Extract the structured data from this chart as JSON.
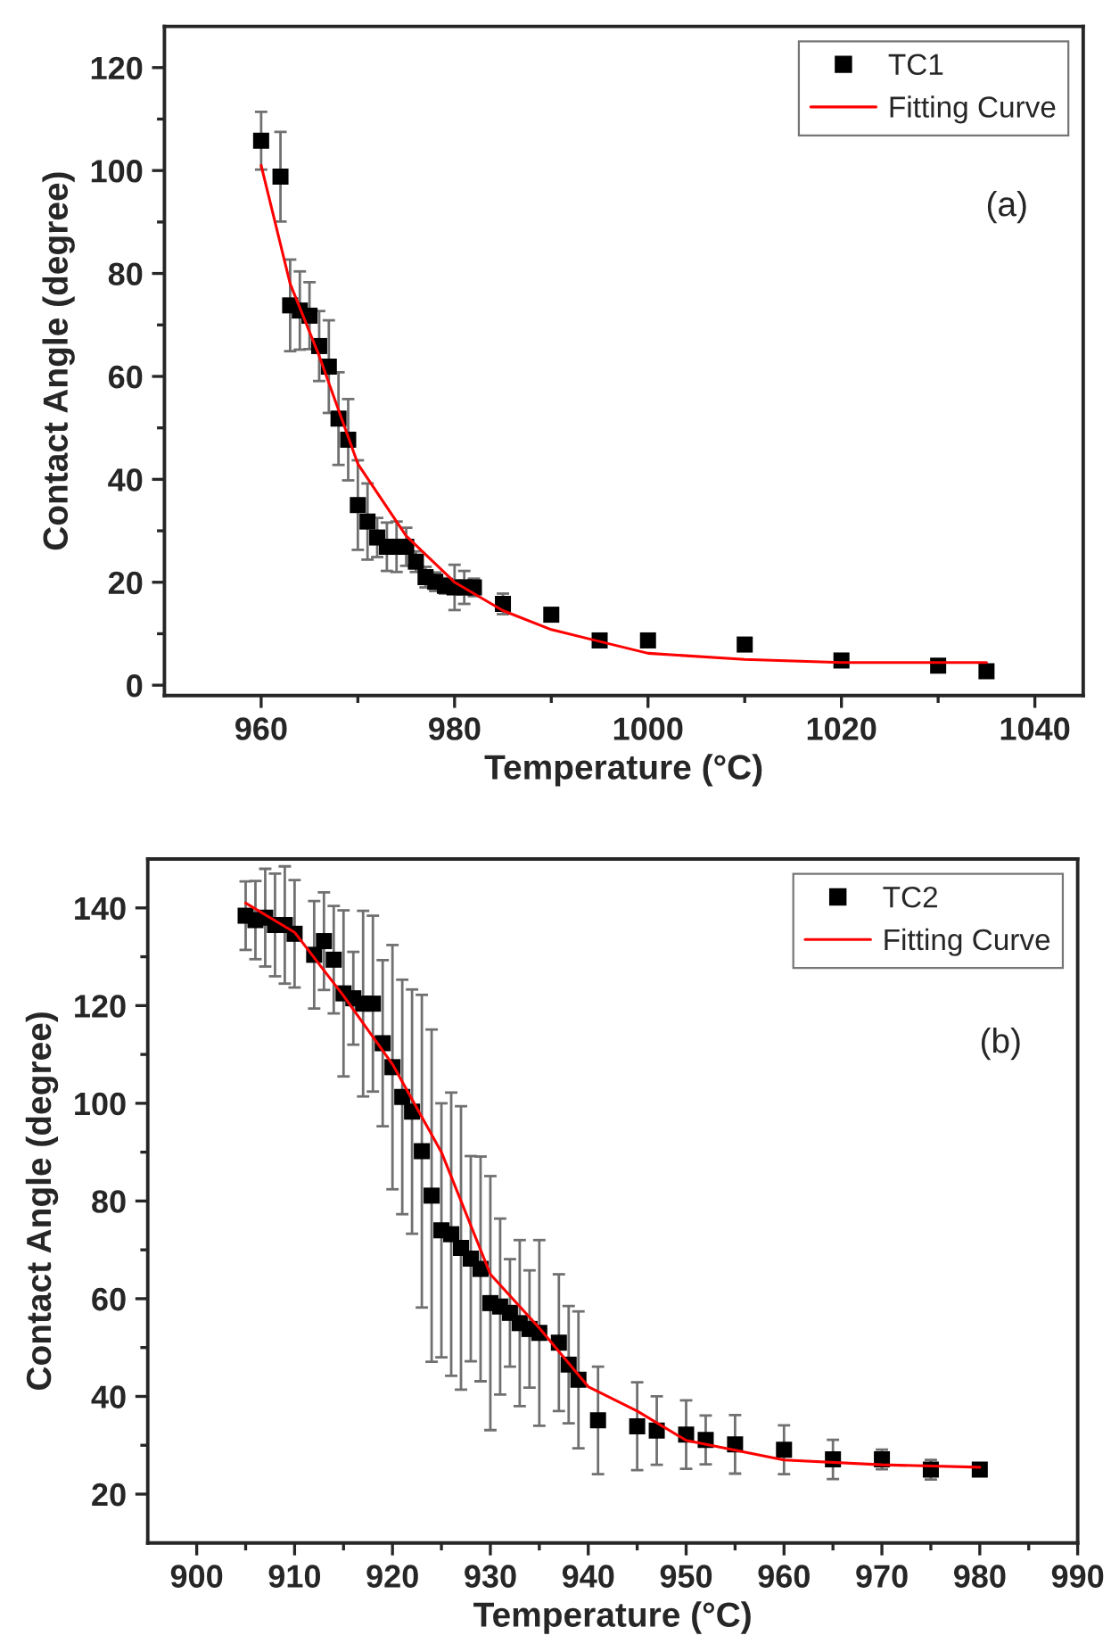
{
  "chart_data": [
    {
      "type": "scatter",
      "xlabel": "Temperature (°C)",
      "ylabel": "Contact Angle (degree)",
      "annotations": [
        "(a)"
      ],
      "xlim": [
        950,
        1045
      ],
      "xticks": [
        960,
        980,
        1000,
        1020,
        1040
      ],
      "ylim": [
        -2,
        128
      ],
      "yticks": [
        0,
        20,
        40,
        60,
        80,
        100,
        120
      ],
      "grid": false,
      "legend": "top right",
      "marker": "square",
      "series": [
        {
          "name": "TC1",
          "color": "#000000",
          "x": [
            960,
            962,
            963,
            964,
            965,
            966,
            967,
            968,
            969,
            970,
            971,
            972,
            973,
            974,
            975,
            976,
            977,
            978,
            979,
            980,
            981,
            982,
            985,
            990,
            995,
            1000,
            1010,
            1020,
            1030,
            1035
          ],
          "values": [
            105.8,
            98.8,
            73.8,
            72.8,
            71.8,
            65.9,
            61.9,
            51.8,
            47.7,
            35,
            31.8,
            28.7,
            26.9,
            26.9,
            26.9,
            24,
            21,
            20.1,
            19.3,
            19,
            19,
            19,
            15.8,
            13.7,
            8.7,
            8.7,
            7.9,
            4.8,
            3.8,
            2.7
          ],
          "errors": [
            5.6,
            8.7,
            8.9,
            7.6,
            6.5,
            6.8,
            9,
            9,
            7.9,
            8.7,
            7.4,
            3.8,
            4.7,
            4.9,
            3.7,
            2,
            2,
            1.8,
            1.5,
            4.4,
            3.2,
            1.7,
            2,
            1,
            null,
            1,
            null,
            1,
            1,
            1
          ]
        },
        {
          "name": "Fitting Curve",
          "type": "line",
          "color": "#ff0000",
          "marker": "none",
          "line_style": "solid",
          "x": [
            960,
            963,
            966,
            970,
            975,
            980,
            985,
            990,
            995,
            1000,
            1010,
            1020,
            1035
          ],
          "values": [
            101,
            78,
            64,
            43,
            29,
            20,
            14.5,
            10.8,
            8.5,
            6.2,
            5,
            4.4,
            4.4
          ]
        }
      ]
    },
    {
      "type": "scatter",
      "xlabel": "Temperature (°C)",
      "ylabel": "Contact Angle (degree)",
      "annotations": [
        "(b)"
      ],
      "xlim": [
        895,
        990
      ],
      "xticks": [
        900,
        910,
        920,
        930,
        940,
        950,
        960,
        970,
        980,
        990
      ],
      "ylim": [
        10,
        150
      ],
      "yticks": [
        20,
        40,
        60,
        80,
        100,
        120,
        140
      ],
      "grid": false,
      "legend": "top right",
      "marker": "square",
      "series": [
        {
          "name": "TC2",
          "color": "#000000",
          "x": [
            905,
            906,
            907,
            908,
            909,
            910,
            912,
            913,
            914,
            915,
            916,
            917,
            918,
            919,
            920,
            921,
            922,
            923,
            924,
            925,
            926,
            927,
            928,
            929,
            930,
            931,
            932,
            933,
            934,
            935,
            937,
            938,
            939,
            941,
            945,
            947,
            950,
            952,
            955,
            960,
            965,
            970,
            975,
            980
          ],
          "values": [
            138.4,
            137.5,
            138,
            136.5,
            136.5,
            134.7,
            130.4,
            133.2,
            129.4,
            122.5,
            121.5,
            120.4,
            120.4,
            112.3,
            107.4,
            101.3,
            98.3,
            90.2,
            81.1,
            74,
            73.2,
            70.4,
            68.2,
            66.1,
            59.1,
            58.4,
            57.1,
            55,
            53.8,
            53,
            51,
            46.5,
            43.4,
            35.1,
            33.9,
            33,
            32.2,
            31.1,
            30.2,
            29.1,
            27.1,
            27.1,
            25,
            25
          ],
          "errors": [
            7,
            8,
            10,
            10.5,
            12,
            11,
            11,
            10,
            11,
            17,
            9.5,
            19,
            18,
            17,
            25,
            24,
            25,
            32,
            34,
            26,
            29,
            29,
            21,
            23,
            26,
            18,
            11,
            17,
            12,
            19,
            14,
            12,
            14,
            11,
            9,
            7,
            7,
            5,
            6,
            5,
            4,
            2,
            2,
            null
          ]
        },
        {
          "name": "Fitting Curve",
          "type": "line",
          "color": "#ff0000",
          "marker": "none",
          "line_style": "solid",
          "x": [
            905,
            910,
            915,
            920,
            925,
            930,
            935,
            940,
            945,
            950,
            955,
            960,
            970,
            980
          ],
          "values": [
            141,
            135,
            122,
            108,
            90,
            65,
            54,
            42,
            37,
            31,
            29,
            27,
            26,
            25.5
          ]
        }
      ]
    }
  ]
}
